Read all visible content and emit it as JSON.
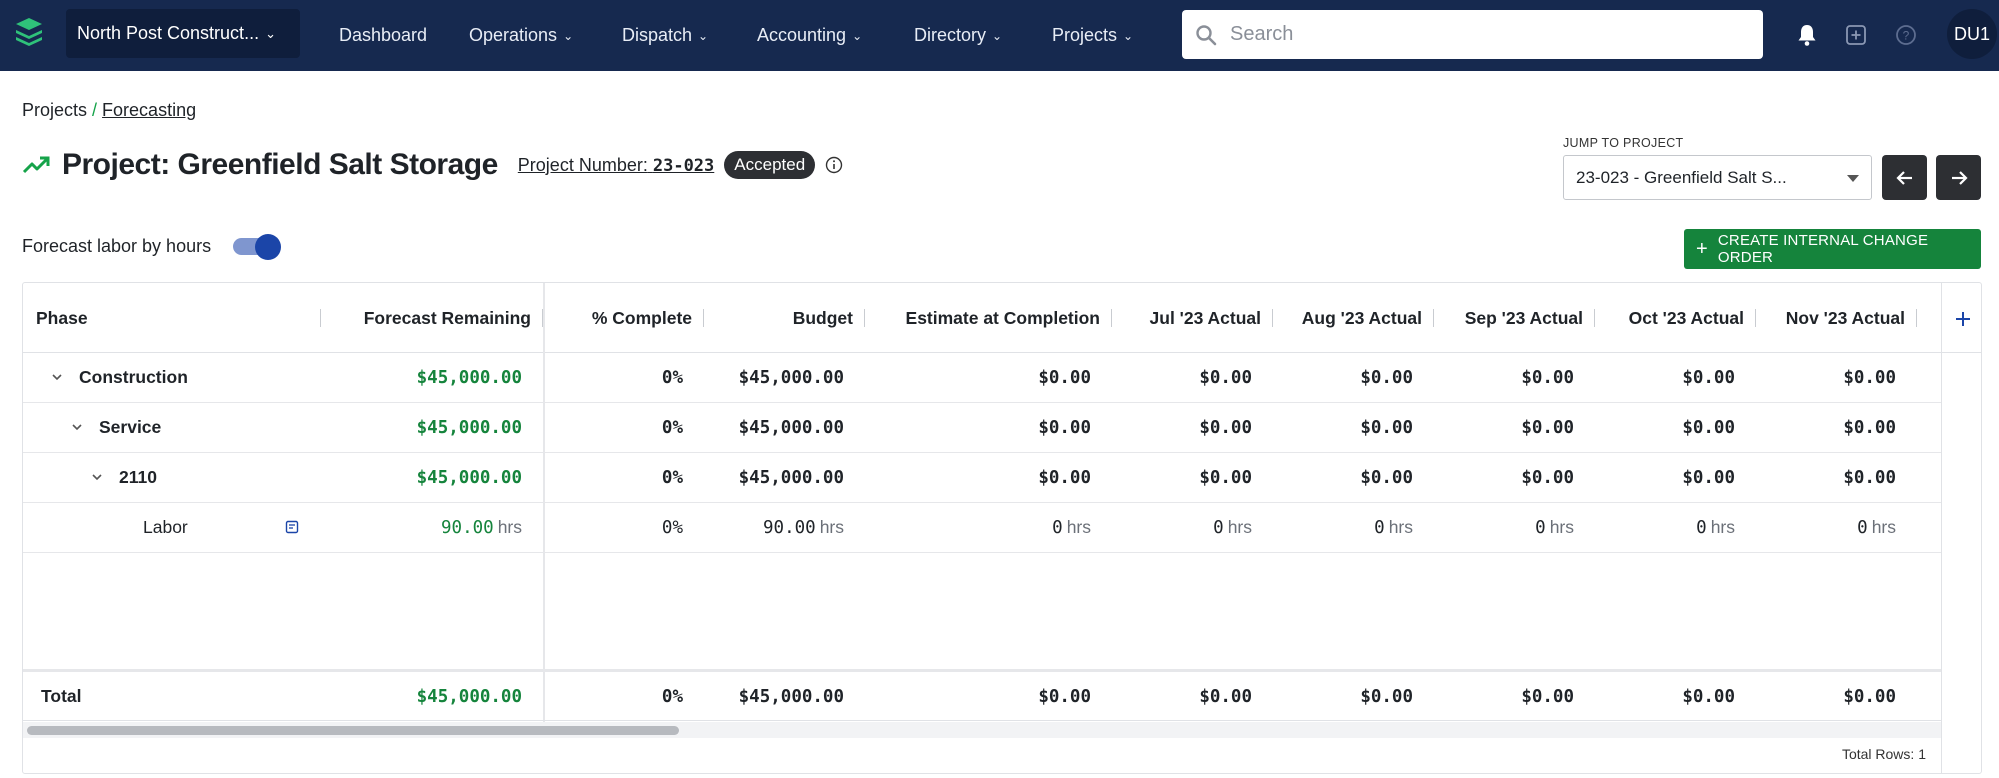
{
  "nav": {
    "company": "North Post Construct...",
    "items": [
      {
        "label": "Dashboard",
        "has_menu": false
      },
      {
        "label": "Operations",
        "has_menu": true
      },
      {
        "label": "Dispatch",
        "has_menu": true
      },
      {
        "label": "Accounting",
        "has_menu": true
      },
      {
        "label": "Directory",
        "has_menu": true
      },
      {
        "label": "Projects",
        "has_menu": true
      }
    ],
    "search_placeholder": "Search",
    "avatar": "DU1"
  },
  "breadcrumb": {
    "parent": "Projects",
    "separator": "/",
    "current": "Forecasting"
  },
  "header": {
    "title": "Project: Greenfield Salt Storage",
    "project_number_label": "Project Number:",
    "project_number": "23-023",
    "status": "Accepted"
  },
  "jump": {
    "label": "JUMP TO PROJECT",
    "value": "23-023 - Greenfield Salt S..."
  },
  "toggle": {
    "label": "Forecast labor by hours",
    "on": true
  },
  "actions": {
    "create_change_order": "CREATE INTERNAL CHANGE ORDER"
  },
  "table": {
    "columns": [
      "Phase",
      "Forecast Remaining",
      "% Complete",
      "Budget",
      "Estimate at Completion",
      "Jul '23 Actual",
      "Aug '23 Actual",
      "Sep '23 Actual",
      "Oct '23 Actual",
      "Nov '23 Actual"
    ],
    "rows": [
      {
        "phase": "Construction",
        "level": 0,
        "forecast": "$45,000.00",
        "forecast_unit": "",
        "complete": "0%",
        "budget": "$45,000.00",
        "budget_unit": "",
        "eac": "$0.00",
        "months": [
          "$0.00",
          "$0.00",
          "$0.00",
          "$0.00",
          "$0.00"
        ],
        "unit": "",
        "bold": true
      },
      {
        "phase": "Service",
        "level": 1,
        "forecast": "$45,000.00",
        "forecast_unit": "",
        "complete": "0%",
        "budget": "$45,000.00",
        "budget_unit": "",
        "eac": "$0.00",
        "months": [
          "$0.00",
          "$0.00",
          "$0.00",
          "$0.00",
          "$0.00"
        ],
        "unit": "",
        "bold": true
      },
      {
        "phase": "2110",
        "level": 2,
        "forecast": "$45,000.00",
        "forecast_unit": "",
        "complete": "0%",
        "budget": "$45,000.00",
        "budget_unit": "",
        "eac": "$0.00",
        "months": [
          "$0.00",
          "$0.00",
          "$0.00",
          "$0.00",
          "$0.00"
        ],
        "unit": "",
        "bold": true
      },
      {
        "phase": "Labor",
        "level": 3,
        "forecast": "90.00",
        "forecast_unit": "hrs",
        "complete": "0%",
        "budget": "90.00",
        "budget_unit": "hrs",
        "eac": "0",
        "months": [
          "0",
          "0",
          "0",
          "0",
          "0"
        ],
        "unit": "hrs",
        "bold": false
      }
    ],
    "total": {
      "label": "Total",
      "forecast": "$45,000.00",
      "complete": "0%",
      "budget": "$45,000.00",
      "eac": "$0.00",
      "months": [
        "$0.00",
        "$0.00",
        "$0.00",
        "$0.00",
        "$0.00"
      ]
    },
    "total_rows": "Total Rows: 1"
  },
  "colors": {
    "nav_bg": "#16294f",
    "accent_green": "#15843c",
    "toggle_blue": "#1b45a8",
    "badge_dark": "#2d2f33"
  }
}
